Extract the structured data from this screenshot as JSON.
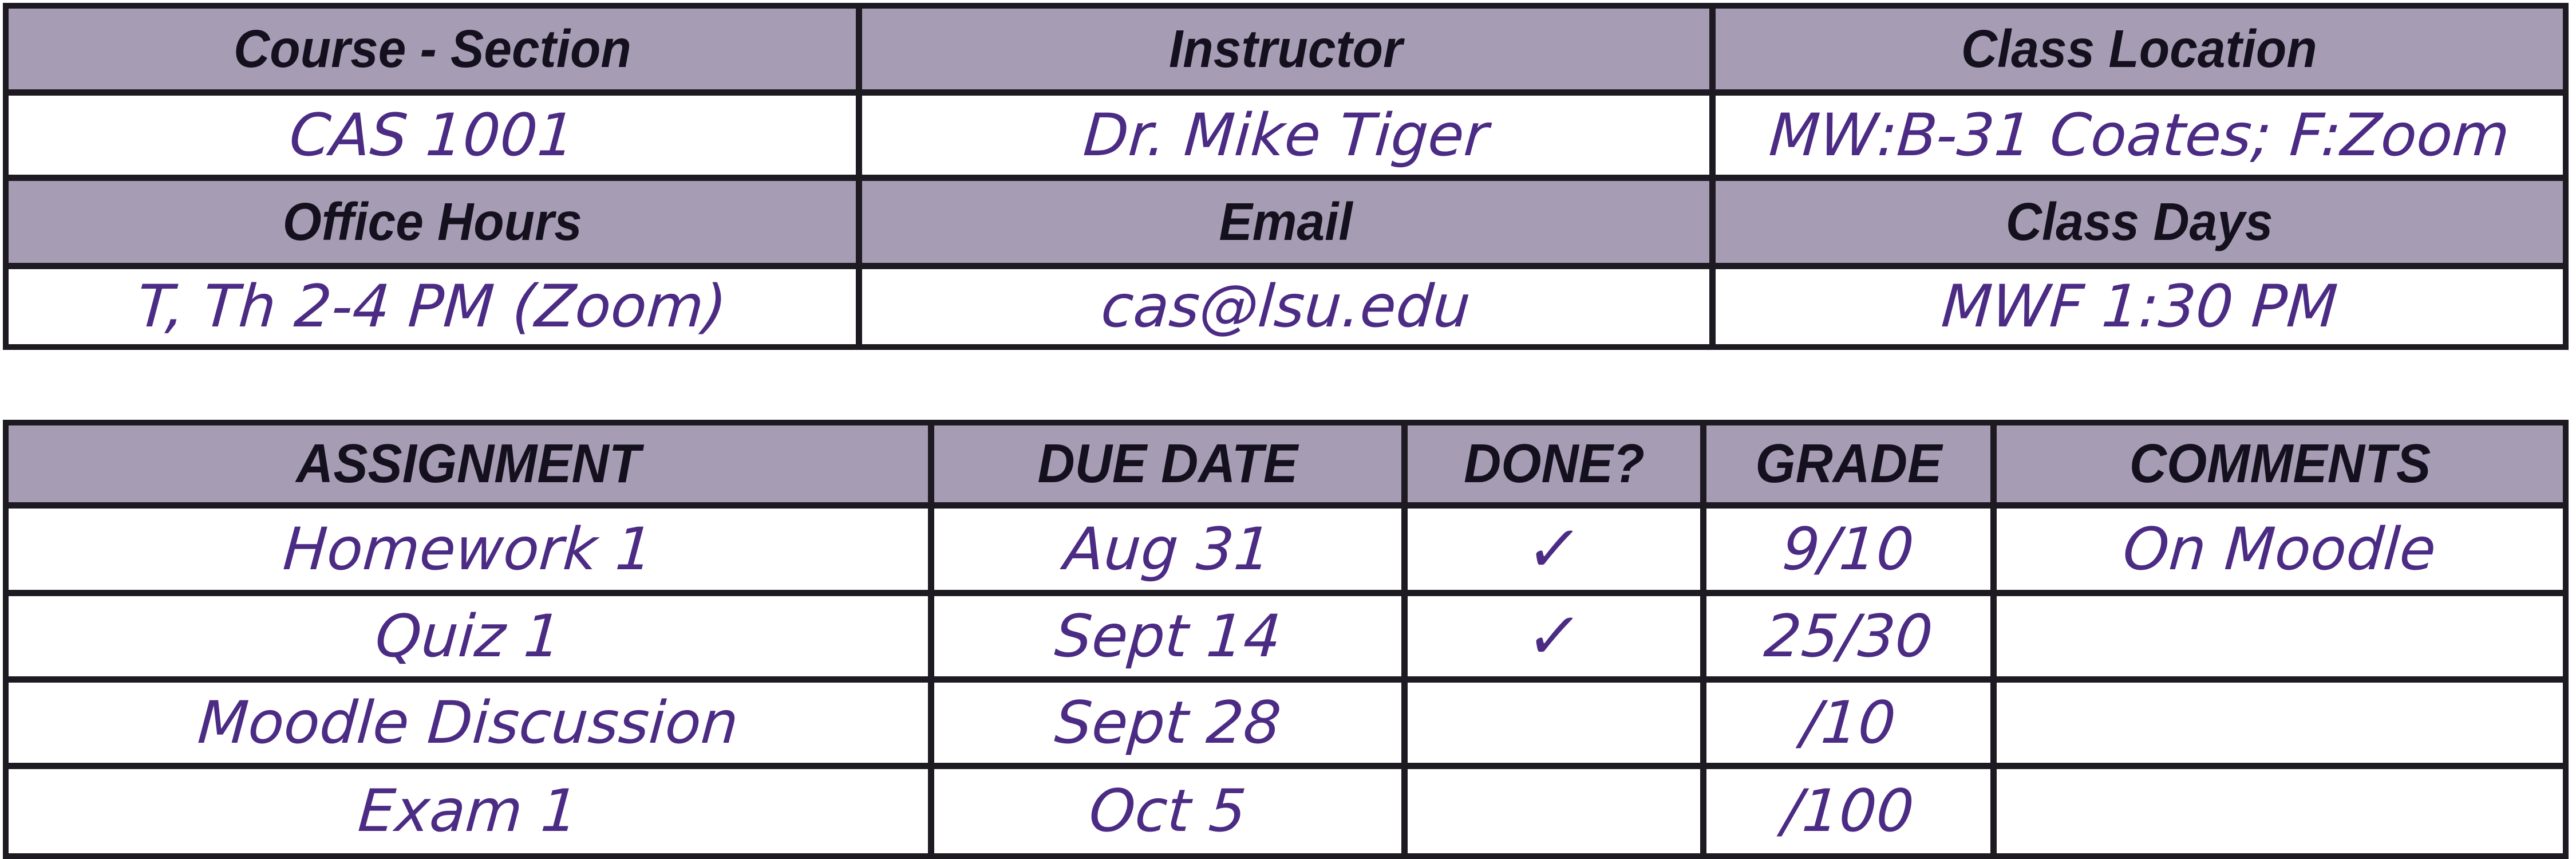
{
  "document": {
    "kind": "course syllabus grade tracker",
    "colors": {
      "header_bg": "#A69DB5",
      "grid_line": "#1E1A22",
      "header_text": "#14101D",
      "handwriting_ink": "#4B2B84",
      "cell_bg": "#FFFFFF"
    }
  },
  "info_table": {
    "header_row_1": [
      "Course - Section",
      "Instructor",
      "Class Location"
    ],
    "value_row_1": [
      "CAS 1001",
      "Dr. Mike Tiger",
      "MW:B-31 Coates; F:Zoom"
    ],
    "header_row_2": [
      "Office Hours",
      "Email",
      "Class Days"
    ],
    "value_row_2": [
      "T, Th 2-4 PM (Zoom)",
      "cas@lsu.edu",
      "MWF 1:30 PM"
    ]
  },
  "assignment_table": {
    "headers": [
      "ASSIGNMENT",
      "DUE DATE",
      "DONE?",
      "GRADE",
      "COMMENTS"
    ],
    "rows": [
      {
        "assignment": "Homework 1",
        "due_date": "Aug 31",
        "done": "✓",
        "grade": "9/10",
        "comments": "On Moodle"
      },
      {
        "assignment": "Quiz 1",
        "due_date": "Sept 14",
        "done": "✓",
        "grade": "25/30",
        "comments": ""
      },
      {
        "assignment": "Moodle Discussion",
        "due_date": "Sept 28",
        "done": "",
        "grade": "/10",
        "comments": ""
      },
      {
        "assignment": "Exam 1",
        "due_date": "Oct 5",
        "done": "",
        "grade": "/100",
        "comments": ""
      }
    ]
  }
}
